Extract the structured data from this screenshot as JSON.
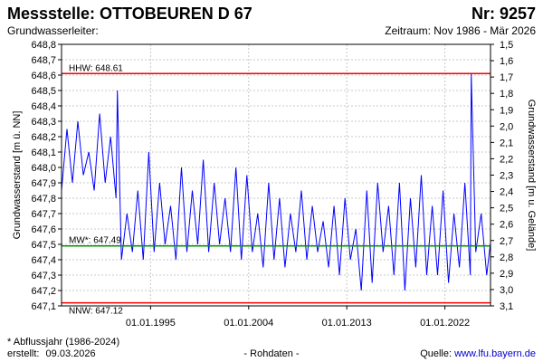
{
  "header": {
    "title": "Messstelle: OTTOBEUREN D 67",
    "number": "Nr: 9257",
    "subtitle": "Grundwasserleiter:",
    "period": "Zeitraum: Nov 1986 - Mär 2026"
  },
  "footer": {
    "note": "* Abflussjahr (1986-2024)",
    "created_label": "erstellt:",
    "created_date": "09.03.2026",
    "raw_data": "- Rohdaten -",
    "source_label": "Quelle:",
    "source_url": "www.lfu.bayern.de"
  },
  "colors": {
    "series": "#0000ff",
    "extreme_lines": "#ff0000",
    "mean_line": "#009900",
    "grid": "#c8c8c8",
    "source_link": "#0000cc"
  },
  "chart_data": {
    "type": "line",
    "title": "",
    "ylabel": "Grundwasserstand [m ü. NN]",
    "ylabel_right": "Grundwasserstand [m u. Gelände]",
    "ylim": [
      647.1,
      648.8
    ],
    "ylim_right": [
      1.5,
      3.1
    ],
    "xlim": [
      "1986-11-01",
      "2026-03-09"
    ],
    "grid": true,
    "yticks": [
      "647,1",
      "647,2",
      "647,3",
      "647,4",
      "647,5",
      "647,6",
      "647,7",
      "647,8",
      "647,9",
      "648,0",
      "648,1",
      "648,2",
      "648,3",
      "648,4",
      "648,5",
      "648,6",
      "648,7",
      "648,8"
    ],
    "yticks_right": [
      "1,5",
      "1,6",
      "1,7",
      "1,8",
      "1,9",
      "2,0",
      "2,1",
      "2,2",
      "2,3",
      "2,4",
      "2,5",
      "2,6",
      "2,7",
      "2,8",
      "2,9",
      "3,0",
      "3,1"
    ],
    "xticks": [
      {
        "label": "01.01.1995",
        "date": "1995-01-01"
      },
      {
        "label": "01.01.2004",
        "date": "2004-01-01"
      },
      {
        "label": "01.01.2013",
        "date": "2013-01-01"
      },
      {
        "label": "01.01.2022",
        "date": "2022-01-01"
      }
    ],
    "reference_lines": [
      {
        "label": "HHW: 648.61",
        "value": 648.61,
        "kind": "max"
      },
      {
        "label": "MW*: 647.49",
        "value": 647.49,
        "kind": "mean"
      },
      {
        "label": "NNW: 647.12",
        "value": 647.12,
        "kind": "min"
      }
    ],
    "series": [
      {
        "x": [
          "1986-11-01",
          "1987-05-01",
          "1987-11-01",
          "1988-05-01",
          "1988-11-01",
          "1989-05-01",
          "1989-11-01",
          "1990-05-01",
          "1990-11-01",
          "1991-05-01",
          "1991-11-01",
          "1991-12-15",
          "1992-05-01",
          "1992-11-01",
          "1993-05-01",
          "1993-11-01",
          "1994-05-01",
          "1994-11-01",
          "1995-05-01",
          "1995-11-01",
          "1996-05-01",
          "1996-11-01",
          "1997-05-01",
          "1997-11-01",
          "1998-05-01",
          "1998-11-01",
          "1999-05-01",
          "1999-11-01",
          "2000-05-01",
          "2000-11-01",
          "2001-05-01",
          "2001-11-01",
          "2002-05-01",
          "2002-11-01",
          "2003-05-01",
          "2003-11-01",
          "2004-05-01",
          "2004-11-01",
          "2005-05-01",
          "2005-11-01",
          "2006-05-01",
          "2006-11-01",
          "2007-05-01",
          "2007-11-01",
          "2008-05-01",
          "2008-11-01",
          "2009-05-01",
          "2009-11-01",
          "2010-05-01",
          "2010-11-01",
          "2011-05-01",
          "2011-11-01",
          "2012-05-01",
          "2012-11-01",
          "2013-05-01",
          "2013-11-01",
          "2014-05-01",
          "2014-11-01",
          "2015-05-01",
          "2015-11-01",
          "2016-05-01",
          "2016-11-01",
          "2017-05-01",
          "2017-11-01",
          "2018-05-01",
          "2018-11-01",
          "2019-05-01",
          "2019-11-01",
          "2020-05-01",
          "2020-11-01",
          "2021-05-01",
          "2021-11-01",
          "2022-05-01",
          "2022-11-01",
          "2023-05-01",
          "2023-11-01",
          "2024-05-01",
          "2024-06-01",
          "2024-11-01",
          "2025-05-01",
          "2025-11-01",
          "2026-03-01"
        ],
        "y": [
          647.85,
          648.25,
          647.9,
          648.3,
          647.95,
          648.1,
          647.85,
          648.35,
          647.9,
          648.2,
          647.8,
          648.5,
          647.4,
          647.7,
          647.45,
          647.85,
          647.4,
          648.1,
          647.45,
          647.9,
          647.5,
          647.75,
          647.4,
          648.0,
          647.45,
          647.85,
          647.5,
          648.05,
          647.45,
          647.9,
          647.5,
          647.8,
          647.45,
          648.0,
          647.4,
          647.95,
          647.45,
          647.7,
          647.35,
          647.9,
          647.4,
          647.8,
          647.35,
          647.7,
          647.45,
          647.85,
          647.4,
          647.75,
          647.45,
          647.65,
          647.35,
          647.75,
          647.3,
          647.8,
          647.4,
          647.6,
          647.2,
          647.85,
          647.25,
          647.9,
          647.45,
          647.75,
          647.3,
          647.9,
          647.2,
          647.8,
          647.35,
          647.95,
          647.3,
          647.75,
          647.3,
          647.85,
          647.25,
          647.7,
          647.35,
          647.9,
          647.3,
          648.61,
          647.45,
          647.7,
          647.3,
          647.5
        ]
      }
    ]
  }
}
